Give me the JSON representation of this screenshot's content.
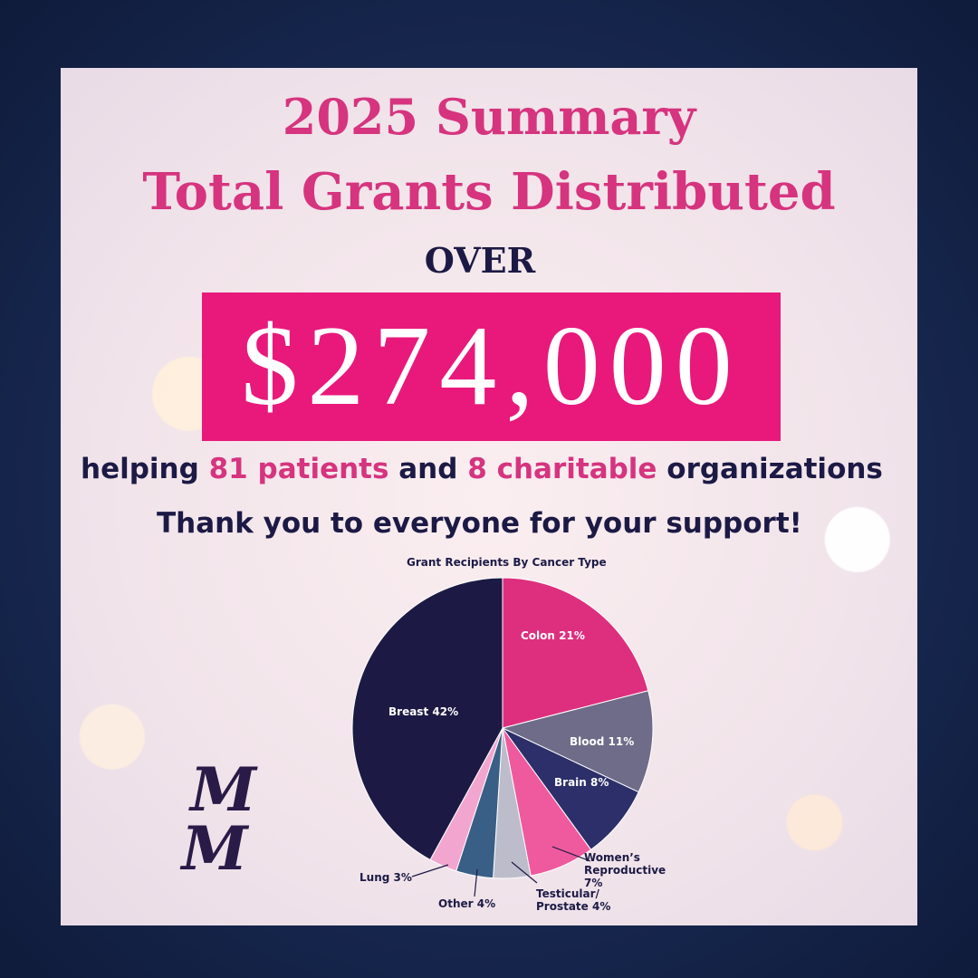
{
  "header": {
    "line1": "2025 Summary",
    "line2": "Total Grants Distributed",
    "over": "OVER",
    "amount": "$274,000"
  },
  "helping": {
    "w1": "helping",
    "w2": "81 patients",
    "w3": "and",
    "w4": "8 charitable",
    "w5": "organizations"
  },
  "thanks": "Thank you to everyone for your support!",
  "logo": [
    "M",
    "M"
  ],
  "chart_data": {
    "type": "pie",
    "title": "Grant Recipients By Cancer Type",
    "categories": [
      "Colon",
      "Blood",
      "Brain",
      "Women’s Reproductive",
      "Testicular/ Prostate",
      "Other",
      "Lung",
      "Breast"
    ],
    "values": [
      21,
      11,
      8,
      7,
      4,
      4,
      3,
      42
    ],
    "value_labels": [
      "21%",
      "11%",
      "8%",
      "7%",
      "4%",
      "4%",
      "3%",
      "42%"
    ],
    "colors": [
      "#de2f7f",
      "#6e6c88",
      "#2d2f6a",
      "#ef5a9e",
      "#bdbccb",
      "#3a5f86",
      "#f2a6cf",
      "#1c1a45"
    ]
  }
}
